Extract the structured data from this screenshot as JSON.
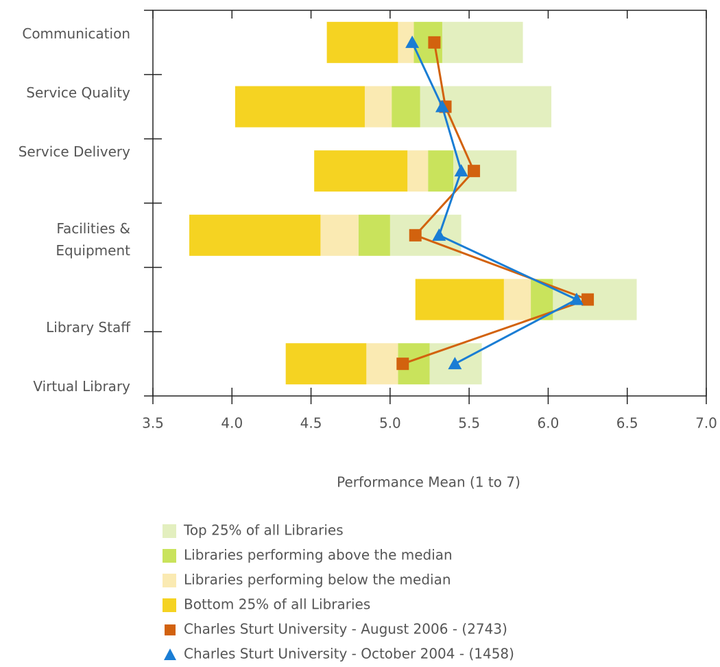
{
  "chart_data": {
    "type": "bar",
    "orientation": "horizontal",
    "x_label": "Performance Mean (1 to 7)",
    "categories": [
      "Communication",
      "Service Quality",
      "Service Delivery",
      "Facilities & Equipment",
      "Library Staff",
      "Virtual Library"
    ],
    "xlim": [
      3.5,
      7.0
    ],
    "xticks": [
      3.5,
      {
        "value": 4.0,
        "label": "4.0"
      },
      4.5,
      {
        "value": 5.0,
        "label": "5.0"
      },
      5.5,
      {
        "value": 6.0,
        "label": "6.0"
      },
      6.5,
      {
        "value": 7.0,
        "label": "7.0"
      }
    ],
    "series": [
      {
        "name": "Top 25% of all Libraries",
        "color": "#e3efbf",
        "values": [
          [
            5.33,
            5.84
          ],
          [
            5.19,
            6.02
          ],
          [
            5.4,
            5.8
          ],
          [
            5.0,
            5.45
          ],
          [
            6.03,
            6.56
          ],
          [
            5.25,
            5.58
          ]
        ]
      },
      {
        "name": "Libraries performing above the median",
        "color": "#c9e35c",
        "values": [
          [
            5.15,
            5.33
          ],
          [
            5.01,
            5.19
          ],
          [
            5.24,
            5.4
          ],
          [
            4.8,
            5.0
          ],
          [
            5.89,
            6.03
          ],
          [
            5.05,
            5.25
          ]
        ]
      },
      {
        "name": "Libraries performing below the median",
        "color": "#faeab2",
        "values": [
          [
            5.05,
            5.15
          ],
          [
            4.84,
            5.01
          ],
          [
            5.11,
            5.24
          ],
          [
            4.56,
            4.8
          ],
          [
            5.72,
            5.89
          ],
          [
            4.85,
            5.05
          ]
        ]
      },
      {
        "name": "Bottom 25% of all Libraries",
        "color": "#f5d322",
        "values": [
          [
            4.6,
            5.05
          ],
          [
            4.02,
            4.84
          ],
          [
            4.52,
            5.11
          ],
          [
            3.73,
            4.56
          ],
          [
            5.16,
            5.72
          ],
          [
            4.34,
            4.85
          ]
        ]
      },
      {
        "name": "Charles Sturt University - August 2006 - (2743)",
        "type": "line",
        "marker": "square",
        "color": "#d2620e",
        "values": [
          5.28,
          5.35,
          5.53,
          5.16,
          6.25,
          5.08
        ]
      },
      {
        "name": "Charles Sturt University - October 2004 - (1458)",
        "type": "line",
        "marker": "triangle",
        "color": "#1a7dd4",
        "values": [
          5.14,
          5.33,
          5.45,
          5.31,
          6.18,
          5.41
        ]
      }
    ]
  }
}
